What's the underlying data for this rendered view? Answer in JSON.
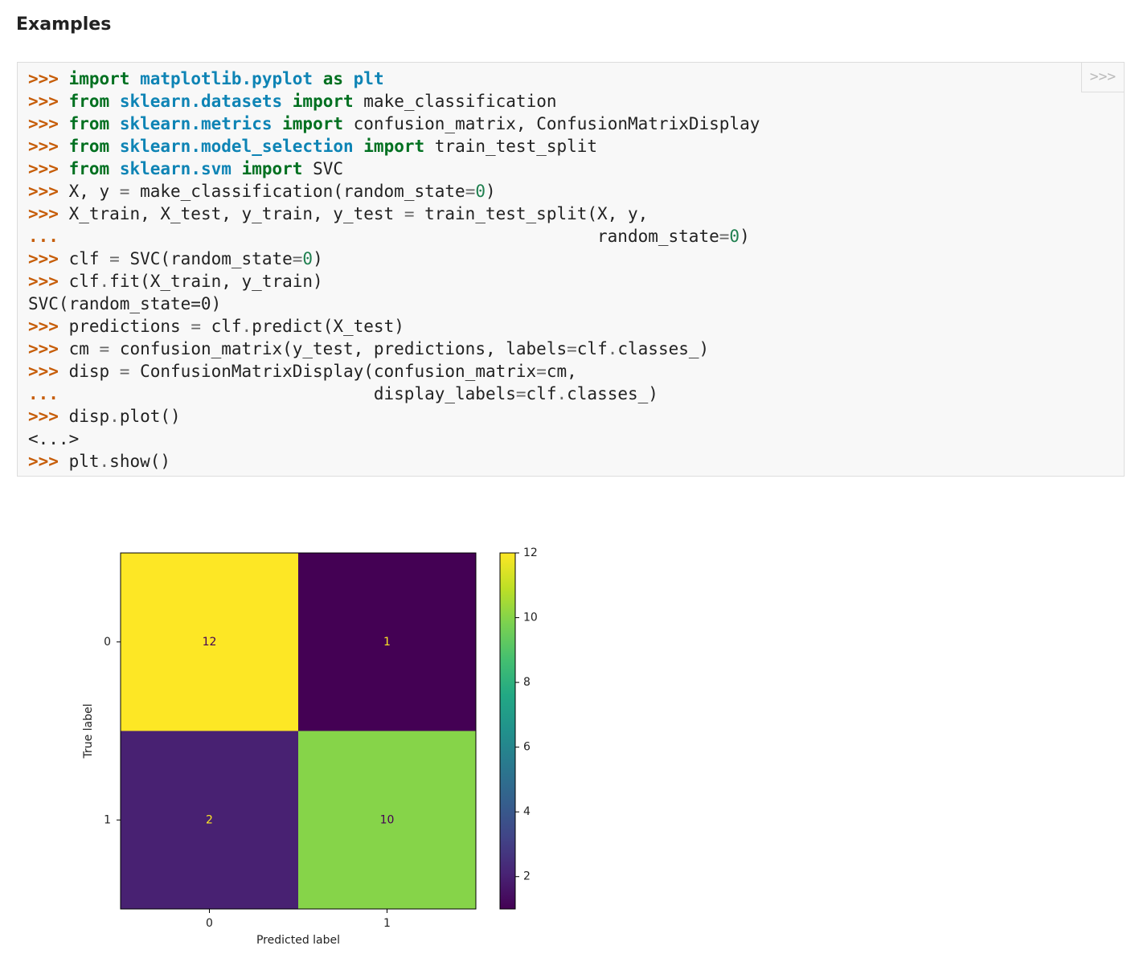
{
  "heading": "Examples",
  "copy_button": ">>>",
  "code_lines": [
    [
      [
        ">>>",
        "#c65d09"
      ],
      " ",
      [
        "import",
        "#007020"
      ],
      " ",
      [
        "matplotlib.pyplot",
        "#0e84b5"
      ],
      " ",
      [
        "as",
        "#007020"
      ],
      " ",
      [
        "plt",
        "#0e84b5"
      ]
    ],
    [
      [
        ">>>",
        "#c65d09"
      ],
      " ",
      [
        "from",
        "#007020"
      ],
      " ",
      [
        "sklearn.datasets",
        "#0e84b5"
      ],
      " ",
      [
        "import",
        "#007020"
      ],
      " make_classification"
    ],
    [
      [
        ">>>",
        "#c65d09"
      ],
      " ",
      [
        "from",
        "#007020"
      ],
      " ",
      [
        "sklearn.metrics",
        "#0e84b5"
      ],
      " ",
      [
        "import",
        "#007020"
      ],
      " confusion_matrix, ConfusionMatrixDisplay"
    ],
    [
      [
        ">>>",
        "#c65d09"
      ],
      " ",
      [
        "from",
        "#007020"
      ],
      " ",
      [
        "sklearn.model_selection",
        "#0e84b5"
      ],
      " ",
      [
        "import",
        "#007020"
      ],
      " train_test_split"
    ],
    [
      [
        ">>>",
        "#c65d09"
      ],
      " ",
      [
        "from",
        "#007020"
      ],
      " ",
      [
        "sklearn.svm",
        "#0e84b5"
      ],
      " ",
      [
        "import",
        "#007020"
      ],
      " SVC"
    ],
    [
      [
        ">>>",
        "#c65d09"
      ],
      " X, y ",
      [
        "=",
        "#666666"
      ],
      " make_classification(random_state",
      [
        "=",
        "#666666"
      ],
      [
        "0",
        "#208050"
      ],
      ")"
    ],
    [
      [
        ">>>",
        "#c65d09"
      ],
      " X_train, X_test, y_train, y_test ",
      [
        "=",
        "#666666"
      ],
      " train_test_split(X, y,"
    ],
    [
      [
        "...",
        "#c65d09"
      ],
      "                                                     random_state",
      [
        "=",
        "#666666"
      ],
      [
        "0",
        "#208050"
      ],
      ")"
    ],
    [
      [
        ">>>",
        "#c65d09"
      ],
      " clf ",
      [
        "=",
        "#666666"
      ],
      " SVC(random_state",
      [
        "=",
        "#666666"
      ],
      [
        "0",
        "#208050"
      ],
      ")"
    ],
    [
      [
        ">>>",
        "#c65d09"
      ],
      " clf",
      [
        ".",
        "#666666"
      ],
      "fit(X_train, y_train)"
    ],
    [
      "SVC(random_state=0)"
    ],
    [
      [
        ">>>",
        "#c65d09"
      ],
      " predictions ",
      [
        "=",
        "#666666"
      ],
      " clf",
      [
        ".",
        "#666666"
      ],
      "predict(X_test)"
    ],
    [
      [
        ">>>",
        "#c65d09"
      ],
      " cm ",
      [
        "=",
        "#666666"
      ],
      " confusion_matrix(y_test, predictions, labels",
      [
        "=",
        "#666666"
      ],
      "clf",
      [
        ".",
        "#666666"
      ],
      "classes_)"
    ],
    [
      [
        ">>>",
        "#c65d09"
      ],
      " disp ",
      [
        "=",
        "#666666"
      ],
      " ConfusionMatrixDisplay(confusion_matrix",
      [
        "=",
        "#666666"
      ],
      "cm,"
    ],
    [
      [
        "...",
        "#c65d09"
      ],
      "                               display_labels",
      [
        "=",
        "#666666"
      ],
      "clf",
      [
        ".",
        "#666666"
      ],
      "classes_)"
    ],
    [
      [
        ">>>",
        "#c65d09"
      ],
      " disp",
      [
        ".",
        "#666666"
      ],
      "plot()"
    ],
    [
      "<...>"
    ],
    [
      [
        ">>>",
        "#c65d09"
      ],
      " plt",
      [
        ".",
        "#666666"
      ],
      "show()"
    ]
  ],
  "chart_data": {
    "type": "heatmap",
    "colormap": "viridis",
    "x_label": "Predicted label",
    "y_label": "True label",
    "x_categories": [
      "0",
      "1"
    ],
    "y_categories": [
      "0",
      "1"
    ],
    "values": [
      [
        12,
        1
      ],
      [
        2,
        10
      ]
    ],
    "clim": [
      1,
      12
    ],
    "colorbar_ticks": [
      2,
      4,
      6,
      8,
      10,
      12
    ]
  }
}
